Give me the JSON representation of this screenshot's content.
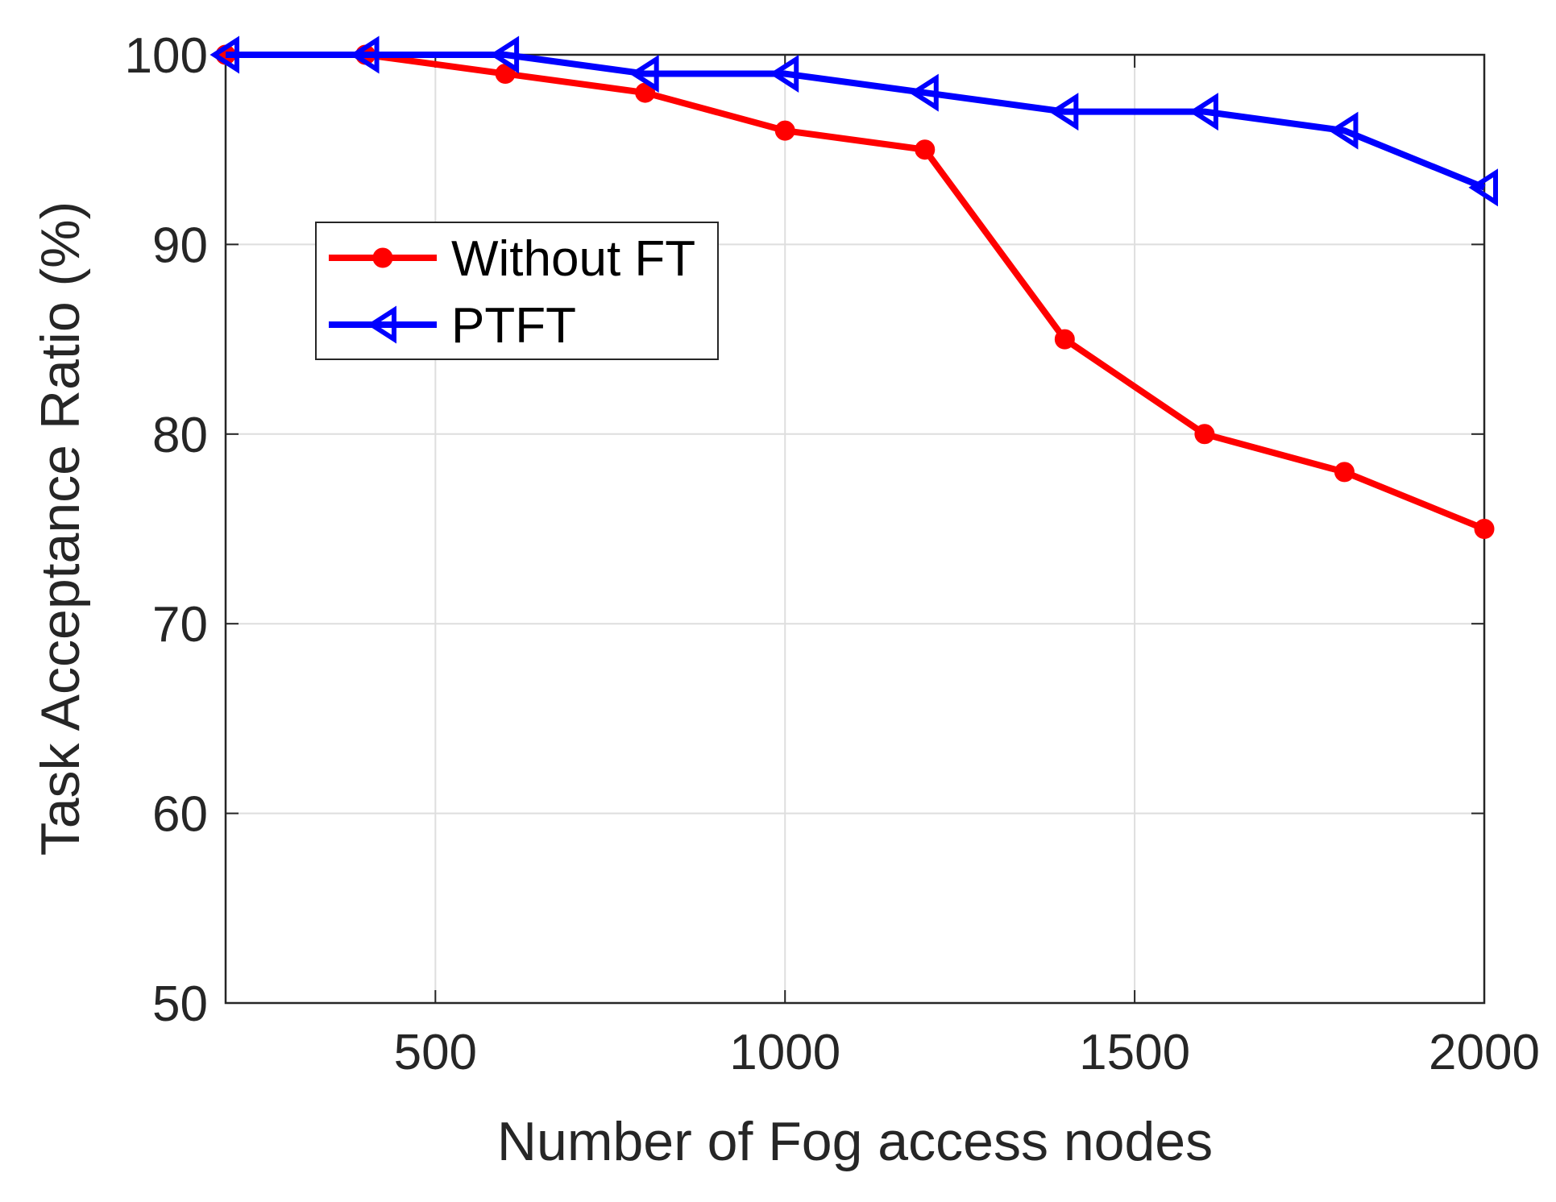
{
  "chart_data": {
    "type": "line",
    "title": "",
    "xlabel": "Number of Fog access nodes",
    "ylabel": "Task Acceptance Ratio (%)",
    "xlim": [
      200,
      2000
    ],
    "ylim": [
      50,
      100
    ],
    "xticks": [
      500,
      1000,
      1500,
      2000
    ],
    "yticks": [
      50,
      60,
      70,
      80,
      90,
      100
    ],
    "grid": true,
    "legend_position": "upper-left",
    "x": [
      200,
      400,
      600,
      800,
      1000,
      1200,
      1400,
      1600,
      1800,
      2000
    ],
    "series": [
      {
        "name": "Without FT",
        "color": "#ff0000",
        "marker": "circle",
        "values": [
          100,
          100,
          99,
          98,
          96,
          95,
          85,
          80,
          78,
          75
        ]
      },
      {
        "name": "PTFT",
        "color": "#0000ff",
        "marker": "triangle-left",
        "values": [
          100,
          100,
          100,
          99,
          99,
          98,
          97,
          97,
          96,
          93
        ]
      }
    ]
  }
}
